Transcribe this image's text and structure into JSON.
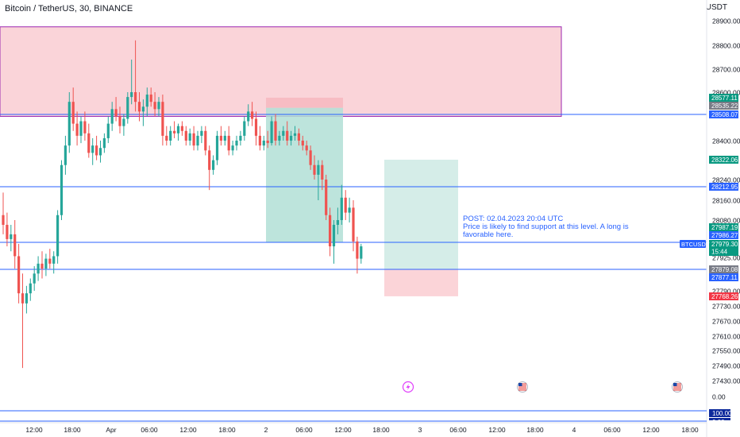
{
  "header": {
    "title": "Bitcoin / TetherUS, 30, BINANCE",
    "unit": "USDT"
  },
  "colors": {
    "up": "#26a69a",
    "down": "#ef5350",
    "level_line": "#2962ff",
    "zone_fill": "#f8c6cc",
    "zone_border": "#9c27b0",
    "long_profit": "#b2dfd6",
    "long_stop": "#fbd4d8"
  },
  "note": {
    "line1": "POST: 02.04.2023 20:04 UTC",
    "line2": "Price is likely to find support at this level. A long is",
    "line3": "favorable here."
  },
  "icons": [
    "lightning-event-icon",
    "us-flag-event-icon",
    "us-flag-event-icon"
  ],
  "chart_data": {
    "type": "candlestick",
    "symbol": "BTCUSDT",
    "interval": "30",
    "x_tick_labels": [
      "12:00",
      "18:00",
      "Apr",
      "06:00",
      "12:00",
      "18:00",
      "2",
      "06:00",
      "12:00",
      "18:00",
      "3",
      "06:00",
      "12:00",
      "18:00",
      "4",
      "06:00",
      "12:00",
      "18:00"
    ],
    "y_tick_labels": [
      "28900.00",
      "28800.00",
      "28700.00",
      "28600.00",
      "28400.00",
      "28240.00",
      "28160.00",
      "28080.00",
      "27925.00",
      "27790.00",
      "27730.00",
      "27670.00",
      "27610.00",
      "27550.00",
      "27490.00",
      "27430.00",
      "0.00"
    ],
    "price_labels": [
      {
        "value": "28577.11",
        "role": "take-profit"
      },
      {
        "value": "28535.22",
        "role": "entry"
      },
      {
        "value": "28508.07",
        "role": "level"
      },
      {
        "value": "28322.06",
        "role": "take-profit"
      },
      {
        "value": "28212.95",
        "role": "level"
      },
      {
        "value": "27987.19",
        "role": "take-profit"
      },
      {
        "value": "27986.27",
        "role": "level"
      },
      {
        "value": "27979.30",
        "role": "last",
        "symbol": "BTCUSDT",
        "countdown": "15:44"
      },
      {
        "value": "27879.08",
        "role": "entry"
      },
      {
        "value": "27877.11",
        "role": "level"
      },
      {
        "value": "27768.26",
        "role": "stop"
      }
    ],
    "levels": [
      28508.07,
      28212.95,
      27986.27,
      27877.11
    ],
    "supply_zone": {
      "top": 28875,
      "bottom": 28500,
      "x_start": "31 Mar 12:00",
      "x_end": "3 Apr 21:00"
    },
    "positions": [
      {
        "type": "long",
        "entry": 28535.22,
        "take_profit": 28577.11,
        "stop": 27986.27,
        "from": "2 Apr 00:00",
        "to": "2 Apr 12:00"
      },
      {
        "type": "long",
        "entry": 27879.08,
        "take_profit": 28322.06,
        "stop": 27768.26,
        "from": "2 Apr 18:00",
        "to": "3 Apr 06:00"
      }
    ],
    "indicator_pane": {
      "labels": [
        "100.00",
        "0.00"
      ]
    },
    "candles": [
      {
        "o": 28100,
        "h": 28190,
        "l": 28020,
        "c": 28060
      },
      {
        "o": 28060,
        "h": 28110,
        "l": 27970,
        "c": 28000
      },
      {
        "o": 28000,
        "h": 28060,
        "l": 27950,
        "c": 28020
      },
      {
        "o": 28020,
        "h": 28080,
        "l": 27880,
        "c": 27930
      },
      {
        "o": 27930,
        "h": 27980,
        "l": 27740,
        "c": 27780
      },
      {
        "o": 27780,
        "h": 27860,
        "l": 27480,
        "c": 27740
      },
      {
        "o": 27740,
        "h": 27810,
        "l": 27700,
        "c": 27780
      },
      {
        "o": 27780,
        "h": 27840,
        "l": 27750,
        "c": 27820
      },
      {
        "o": 27820,
        "h": 27890,
        "l": 27790,
        "c": 27860
      },
      {
        "o": 27860,
        "h": 27930,
        "l": 27830,
        "c": 27900
      },
      {
        "o": 27900,
        "h": 27950,
        "l": 27840,
        "c": 27880
      },
      {
        "o": 27880,
        "h": 27940,
        "l": 27850,
        "c": 27920
      },
      {
        "o": 27920,
        "h": 27960,
        "l": 27880,
        "c": 27900
      },
      {
        "o": 27900,
        "h": 27950,
        "l": 27860,
        "c": 27930
      },
      {
        "o": 27930,
        "h": 28120,
        "l": 27900,
        "c": 28100
      },
      {
        "o": 28100,
        "h": 28320,
        "l": 28080,
        "c": 28300
      },
      {
        "o": 28300,
        "h": 28420,
        "l": 28260,
        "c": 28380
      },
      {
        "o": 28380,
        "h": 28600,
        "l": 28350,
        "c": 28560
      },
      {
        "o": 28560,
        "h": 28620,
        "l": 28440,
        "c": 28470
      },
      {
        "o": 28470,
        "h": 28520,
        "l": 28380,
        "c": 28420
      },
      {
        "o": 28420,
        "h": 28500,
        "l": 28390,
        "c": 28480
      },
      {
        "o": 28480,
        "h": 28520,
        "l": 28400,
        "c": 28430
      },
      {
        "o": 28430,
        "h": 28470,
        "l": 28330,
        "c": 28350
      },
      {
        "o": 28350,
        "h": 28410,
        "l": 28300,
        "c": 28380
      },
      {
        "o": 28380,
        "h": 28420,
        "l": 28320,
        "c": 28340
      },
      {
        "o": 28340,
        "h": 28400,
        "l": 28310,
        "c": 28370
      },
      {
        "o": 28370,
        "h": 28430,
        "l": 28350,
        "c": 28410
      },
      {
        "o": 28410,
        "h": 28500,
        "l": 28390,
        "c": 28470
      },
      {
        "o": 28470,
        "h": 28560,
        "l": 28440,
        "c": 28530
      },
      {
        "o": 28530,
        "h": 28580,
        "l": 28480,
        "c": 28500
      },
      {
        "o": 28500,
        "h": 28540,
        "l": 28430,
        "c": 28460
      },
      {
        "o": 28460,
        "h": 28510,
        "l": 28420,
        "c": 28490
      },
      {
        "o": 28490,
        "h": 28600,
        "l": 28470,
        "c": 28580
      },
      {
        "o": 28580,
        "h": 28740,
        "l": 28550,
        "c": 28600
      },
      {
        "o": 28600,
        "h": 28820,
        "l": 28520,
        "c": 28560
      },
      {
        "o": 28560,
        "h": 28600,
        "l": 28480,
        "c": 28520
      },
      {
        "o": 28520,
        "h": 28570,
        "l": 28460,
        "c": 28540
      },
      {
        "o": 28540,
        "h": 28620,
        "l": 28500,
        "c": 28590
      },
      {
        "o": 28590,
        "h": 28620,
        "l": 28540,
        "c": 28560
      },
      {
        "o": 28560,
        "h": 28600,
        "l": 28500,
        "c": 28530
      },
      {
        "o": 28530,
        "h": 28580,
        "l": 28500,
        "c": 28560
      },
      {
        "o": 28560,
        "h": 28590,
        "l": 28380,
        "c": 28420
      },
      {
        "o": 28420,
        "h": 28460,
        "l": 28380,
        "c": 28400
      },
      {
        "o": 28400,
        "h": 28460,
        "l": 28380,
        "c": 28440
      },
      {
        "o": 28440,
        "h": 28480,
        "l": 28410,
        "c": 28430
      },
      {
        "o": 28430,
        "h": 28470,
        "l": 28400,
        "c": 28460
      },
      {
        "o": 28460,
        "h": 28480,
        "l": 28420,
        "c": 28440
      },
      {
        "o": 28440,
        "h": 28460,
        "l": 28380,
        "c": 28400
      },
      {
        "o": 28400,
        "h": 28450,
        "l": 28380,
        "c": 28430
      },
      {
        "o": 28430,
        "h": 28460,
        "l": 28360,
        "c": 28380
      },
      {
        "o": 28380,
        "h": 28440,
        "l": 28360,
        "c": 28420
      },
      {
        "o": 28420,
        "h": 28460,
        "l": 28390,
        "c": 28440
      },
      {
        "o": 28440,
        "h": 28460,
        "l": 28340,
        "c": 28360
      },
      {
        "o": 28360,
        "h": 28380,
        "l": 28200,
        "c": 28280
      },
      {
        "o": 28280,
        "h": 28340,
        "l": 28260,
        "c": 28320
      },
      {
        "o": 28320,
        "h": 28440,
        "l": 28300,
        "c": 28420
      },
      {
        "o": 28420,
        "h": 28460,
        "l": 28380,
        "c": 28400
      },
      {
        "o": 28400,
        "h": 28440,
        "l": 28380,
        "c": 28420
      },
      {
        "o": 28420,
        "h": 28460,
        "l": 28340,
        "c": 28360
      },
      {
        "o": 28360,
        "h": 28400,
        "l": 28340,
        "c": 28380
      },
      {
        "o": 28380,
        "h": 28420,
        "l": 28360,
        "c": 28400
      },
      {
        "o": 28400,
        "h": 28440,
        "l": 28380,
        "c": 28420
      },
      {
        "o": 28420,
        "h": 28500,
        "l": 28400,
        "c": 28480
      },
      {
        "o": 28480,
        "h": 28550,
        "l": 28460,
        "c": 28520
      },
      {
        "o": 28520,
        "h": 28560,
        "l": 28460,
        "c": 28490
      },
      {
        "o": 28490,
        "h": 28520,
        "l": 28380,
        "c": 28420
      },
      {
        "o": 28420,
        "h": 28460,
        "l": 28360,
        "c": 28380
      },
      {
        "o": 28380,
        "h": 28420,
        "l": 28360,
        "c": 28400
      },
      {
        "o": 28400,
        "h": 28440,
        "l": 28370,
        "c": 28390
      },
      {
        "o": 28390,
        "h": 28500,
        "l": 28380,
        "c": 28480
      },
      {
        "o": 28480,
        "h": 28510,
        "l": 28380,
        "c": 28400
      },
      {
        "o": 28400,
        "h": 28440,
        "l": 28380,
        "c": 28420
      },
      {
        "o": 28420,
        "h": 28460,
        "l": 28400,
        "c": 28440
      },
      {
        "o": 28440,
        "h": 28480,
        "l": 28380,
        "c": 28400
      },
      {
        "o": 28400,
        "h": 28440,
        "l": 28380,
        "c": 28420
      },
      {
        "o": 28420,
        "h": 28460,
        "l": 28400,
        "c": 28430
      },
      {
        "o": 28430,
        "h": 28450,
        "l": 28380,
        "c": 28400
      },
      {
        "o": 28400,
        "h": 28420,
        "l": 28360,
        "c": 28380
      },
      {
        "o": 28380,
        "h": 28400,
        "l": 28340,
        "c": 28360
      },
      {
        "o": 28360,
        "h": 28380,
        "l": 28280,
        "c": 28300
      },
      {
        "o": 28300,
        "h": 28340,
        "l": 28240,
        "c": 28260
      },
      {
        "o": 28260,
        "h": 28320,
        "l": 28160,
        "c": 28300
      },
      {
        "o": 28300,
        "h": 28320,
        "l": 28200,
        "c": 28240
      },
      {
        "o": 28240,
        "h": 28260,
        "l": 28080,
        "c": 28100
      },
      {
        "o": 28100,
        "h": 28130,
        "l": 27930,
        "c": 27970
      },
      {
        "o": 27970,
        "h": 28080,
        "l": 27900,
        "c": 28060
      },
      {
        "o": 28060,
        "h": 28130,
        "l": 28020,
        "c": 28080
      },
      {
        "o": 28080,
        "h": 28220,
        "l": 28060,
        "c": 28170
      },
      {
        "o": 28170,
        "h": 28200,
        "l": 28080,
        "c": 28110
      },
      {
        "o": 28110,
        "h": 28170,
        "l": 28070,
        "c": 28130
      },
      {
        "o": 28130,
        "h": 28160,
        "l": 27950,
        "c": 27990
      },
      {
        "o": 27990,
        "h": 28010,
        "l": 27860,
        "c": 27920
      },
      {
        "o": 27920,
        "h": 27980,
        "l": 27900,
        "c": 27970
      }
    ]
  }
}
